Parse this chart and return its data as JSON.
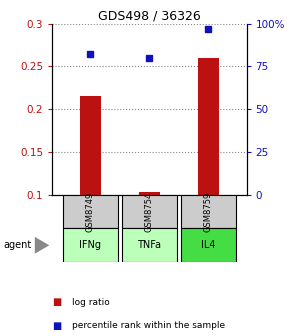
{
  "title": "GDS498 / 36326",
  "samples": [
    "GSM8749",
    "GSM8754",
    "GSM8759"
  ],
  "agents": [
    "IFNg",
    "TNFa",
    "IL4"
  ],
  "x_positions": [
    1,
    2,
    3
  ],
  "log_ratio": [
    0.215,
    0.103,
    0.26
  ],
  "percentile_rank": [
    82,
    80,
    97
  ],
  "ylim_left": [
    0.1,
    0.3
  ],
  "ylim_right": [
    0,
    100
  ],
  "yticks_left": [
    0.1,
    0.15,
    0.2,
    0.25,
    0.3
  ],
  "ytick_labels_left": [
    "0.1",
    "0.15",
    "0.2",
    "0.25",
    "0.3"
  ],
  "yticks_right": [
    0,
    25,
    50,
    75,
    100
  ],
  "ytick_labels_right": [
    "0",
    "25",
    "50",
    "75",
    "100%"
  ],
  "bar_color": "#bb1111",
  "dot_color": "#1111bb",
  "bar_width": 0.35,
  "grid_color": "#888888",
  "agent_colors": [
    "#bbffbb",
    "#bbffbb",
    "#44dd44"
  ],
  "sample_box_color": "#cccccc",
  "legend_bar_label": "log ratio",
  "legend_dot_label": "percentile rank within the sample",
  "xlim": [
    0.35,
    3.65
  ],
  "title_fontsize": 9,
  "tick_fontsize": 7.5
}
